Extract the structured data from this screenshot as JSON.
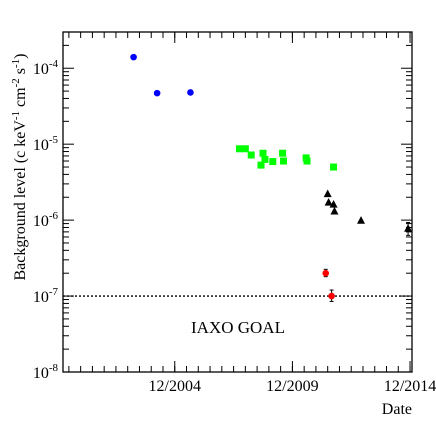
{
  "chart_data": {
    "type": "scatter",
    "title": "",
    "xlabel": "Date",
    "ylabel": "Background level (c keV",
    "ylabel_parts": {
      "main": "Background level (c keV",
      "sup1": "-1",
      "mid1": " cm",
      "sup2": "-2",
      "mid2": " s",
      "sup3": "-1",
      "end": ")"
    },
    "x_scale": "date",
    "y_scale": "log",
    "xlim": [
      "2000-03-01",
      "2015-01-01"
    ],
    "ylim": [
      1e-08,
      0.0003
    ],
    "x_ticks": [
      {
        "date": "2004-12-01",
        "label": "12/2004"
      },
      {
        "date": "2009-12-01",
        "label": "12/2009"
      },
      {
        "date": "2014-12-01",
        "label": "12/2014"
      }
    ],
    "y_ticks": [
      {
        "value": 1e-08,
        "base": "10",
        "exp": "-8"
      },
      {
        "value": 1e-07,
        "base": "10",
        "exp": "-7"
      },
      {
        "value": 1e-06,
        "base": "10",
        "exp": "-6"
      },
      {
        "value": 1e-05,
        "base": "10",
        "exp": "-5"
      },
      {
        "value": 0.0001,
        "base": "10",
        "exp": "-4"
      }
    ],
    "grid": false,
    "legend": "none",
    "reference_line": {
      "value": 1e-07,
      "style": "dotted",
      "label": "IAXO GOAL"
    },
    "series": [
      {
        "color": "#0000ff",
        "marker": "circle",
        "points": [
          {
            "x": "2003-03-01",
            "y": 0.00014
          },
          {
            "x": "2004-03-01",
            "y": 4.7e-05
          },
          {
            "x": "2005-08-01",
            "y": 4.8e-05
          }
        ]
      },
      {
        "color": "#00ff00",
        "marker": "square",
        "points": [
          {
            "x": "2007-09-01",
            "y": 8.7e-06
          },
          {
            "x": "2007-12-01",
            "y": 8.7e-06
          },
          {
            "x": "2008-03-01",
            "y": 7.2e-06
          },
          {
            "x": "2008-08-01",
            "y": 5.3e-06
          },
          {
            "x": "2008-09-01",
            "y": 7.6e-06
          },
          {
            "x": "2008-10-01",
            "y": 6.3e-06
          },
          {
            "x": "2009-02-01",
            "y": 5.9e-06
          },
          {
            "x": "2009-07-01",
            "y": 7.6e-06
          },
          {
            "x": "2009-07-15",
            "y": 6e-06
          },
          {
            "x": "2010-07-01",
            "y": 6.6e-06
          },
          {
            "x": "2010-07-15",
            "y": 6e-06
          },
          {
            "x": "2011-09-01",
            "y": 5e-06
          }
        ]
      },
      {
        "color": "#000000",
        "marker": "triangle",
        "points": [
          {
            "x": "2011-06-01",
            "y": 2.2e-06
          },
          {
            "x": "2011-06-15",
            "y": 1.7e-06
          },
          {
            "x": "2011-09-01",
            "y": 1.6e-06
          },
          {
            "x": "2011-09-15",
            "y": 1.3e-06
          },
          {
            "x": "2012-11-01",
            "y": 9.8e-07
          },
          {
            "x": "2014-11-01",
            "y": 7.7e-07,
            "err_low": 6.3e-07,
            "err_high": 9.3e-07
          }
        ]
      },
      {
        "color": "#ff0000",
        "marker": "circle",
        "points": [
          {
            "x": "2011-05-01",
            "y": 2e-07,
            "err_low": 1.8e-07,
            "err_high": 2.25e-07
          },
          {
            "x": "2011-08-01",
            "y": 1e-07,
            "err_low": 8.5e-08,
            "err_high": 1.2e-07
          }
        ]
      }
    ]
  }
}
